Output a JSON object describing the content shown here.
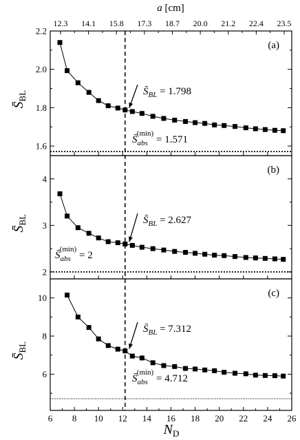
{
  "chart_data": {
    "type": "scatter",
    "top_axis": {
      "label_var": "a",
      "label_unit": "[cm]",
      "tick_labels": [
        "12.3",
        "14.1",
        "15.8",
        "17.3",
        "18.7",
        "20.0",
        "21.2",
        "22.4",
        "23.5"
      ]
    },
    "x_axis": {
      "label_var": "N",
      "label_sub": "D",
      "xlim": [
        6,
        26
      ],
      "ticks": [
        6,
        8,
        10,
        12,
        14,
        16,
        18,
        20,
        22,
        24,
        26
      ]
    },
    "y_label_symbol": "S̄",
    "y_label_sub": "BL",
    "vline_x": 12.2,
    "panels": [
      {
        "tag": "(a)",
        "ylim": [
          1.55,
          2.2
        ],
        "yticks": [
          1.6,
          1.8,
          2.0,
          2.2
        ],
        "ytick_labels": [
          "1.6",
          "1.8",
          "2.0",
          "2.2"
        ],
        "x": [
          6.8,
          7.4,
          8.3,
          9.2,
          10,
          10.8,
          11.6,
          12.2,
          12.8,
          13.6,
          14.5,
          15.4,
          16.3,
          17.2,
          18.0,
          18.8,
          19.6,
          20.4,
          21.3,
          22.2,
          23.0,
          23.8,
          24.6,
          25.3
        ],
        "y": [
          2.14,
          1.993,
          1.93,
          1.88,
          1.837,
          1.81,
          1.798,
          1.788,
          1.78,
          1.77,
          1.755,
          1.744,
          1.735,
          1.728,
          1.722,
          1.718,
          1.71,
          1.707,
          1.702,
          1.695,
          1.69,
          1.686,
          1.682,
          1.68
        ],
        "sbl_value": "1.798",
        "sabs_value": "1.571",
        "sabs_y": 1.571,
        "hline_style": "dotted"
      },
      {
        "tag": "(b)",
        "ylim": [
          1.85,
          4.5
        ],
        "yticks": [
          2,
          3,
          4
        ],
        "ytick_labels": [
          "2",
          "3",
          "4"
        ],
        "x": [
          6.8,
          7.4,
          8.3,
          9.2,
          10,
          10.8,
          11.6,
          12.2,
          12.8,
          13.6,
          14.5,
          15.4,
          16.3,
          17.2,
          18.0,
          18.8,
          19.6,
          20.4,
          21.3,
          22.2,
          23.0,
          23.8,
          24.6,
          25.3
        ],
        "y": [
          3.68,
          3.2,
          2.95,
          2.83,
          2.73,
          2.65,
          2.627,
          2.6,
          2.57,
          2.53,
          2.5,
          2.47,
          2.44,
          2.42,
          2.4,
          2.38,
          2.36,
          2.35,
          2.33,
          2.31,
          2.3,
          2.29,
          2.28,
          2.27
        ],
        "sbl_value": "2.627",
        "sabs_value": "2",
        "sabs_y": 2,
        "hline_style": "dotted"
      },
      {
        "tag": "(c)",
        "ylim": [
          4.1,
          11.0
        ],
        "yticks": [
          4,
          6,
          8,
          10
        ],
        "ytick_labels": [
          "4",
          "6",
          "8",
          "10"
        ],
        "x": [
          7.4,
          8.3,
          9.2,
          10,
          10.8,
          11.6,
          12.2,
          12.8,
          13.6,
          14.5,
          15.4,
          16.3,
          17.2,
          18.0,
          18.8,
          19.6,
          20.4,
          21.3,
          22.2,
          23.0,
          23.8,
          24.6,
          25.3
        ],
        "y": [
          10.15,
          9.0,
          8.45,
          7.85,
          7.5,
          7.312,
          7.22,
          6.95,
          6.85,
          6.6,
          6.45,
          6.4,
          6.3,
          6.27,
          6.22,
          6.18,
          6.1,
          6.05,
          6.02,
          5.95,
          5.93,
          5.92,
          5.9
        ],
        "sbl_value": "7.312",
        "sabs_value": "4.712",
        "sabs_y": 4.712,
        "hline_style": "fine-dotted"
      }
    ]
  }
}
